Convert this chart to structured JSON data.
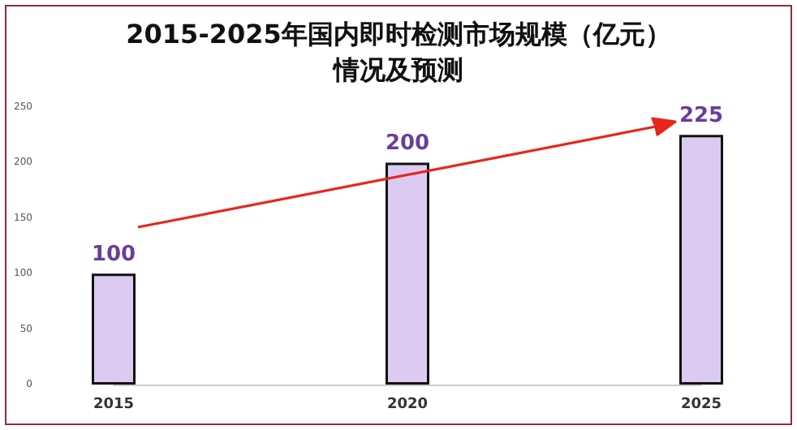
{
  "chart_data": {
    "type": "bar",
    "title": "2015-2025年国内即时检测市场规模（亿元）",
    "subtitle": "情况及预测",
    "categories": [
      "2015",
      "2020",
      "2025"
    ],
    "values": [
      100,
      200,
      225
    ],
    "color": "#dccaf2",
    "ylim": [
      0,
      250
    ],
    "yticks": [
      0,
      50,
      100,
      150,
      200,
      250
    ],
    "grid": false,
    "data_labels": true
  }
}
